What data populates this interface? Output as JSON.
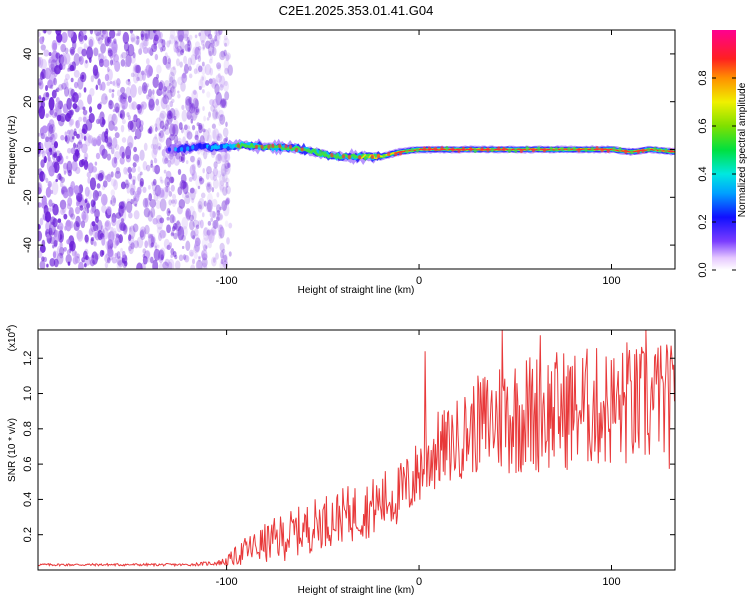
{
  "title": "C2E1.2025.353.01.41.G04",
  "colors": {
    "snr_line": "#e8393a",
    "spec_speckle": "#6a1fd8",
    "axis": "#000000"
  },
  "chart_data": [
    {
      "type": "heatmap",
      "panel": "spectrogram",
      "xlabel": "Height of straight line (km)",
      "ylabel": "Frequency (Hz)",
      "xlim": [
        -198,
        133
      ],
      "ylim": [
        -50,
        50
      ],
      "xticks": [
        -100,
        0,
        100
      ],
      "yticks": [
        -40,
        -20,
        0,
        20,
        40
      ],
      "noise_region_x": [
        -198,
        -100
      ],
      "signal_track": {
        "x": [
          -130,
          -115,
          -100,
          -90,
          -80,
          -70,
          -60,
          -50,
          -40,
          -30,
          -20,
          -10,
          0,
          20,
          40,
          60,
          80,
          90,
          100,
          110,
          120,
          133
        ],
        "freq": [
          0,
          1,
          1,
          2,
          1,
          1,
          0,
          -2,
          -3,
          -3,
          -3,
          -1,
          0,
          0,
          0,
          0,
          0,
          0,
          0,
          -1,
          0,
          -1
        ]
      },
      "colorbar": {
        "label": "Normalized spectral amplitude",
        "range": [
          0,
          1
        ],
        "ticks": [
          "0.0",
          "0.2",
          "0.4",
          "0.6",
          "0.8"
        ],
        "tick_values": [
          0.0,
          0.2,
          0.4,
          0.6,
          0.8
        ]
      }
    },
    {
      "type": "line",
      "panel": "snr",
      "xlabel": "Height of straight line (km)",
      "ylabel": "SNR (10 * v/v)",
      "scale_label": "(x10",
      "scale_exponent": "4",
      "scale_close": ")",
      "xlim": [
        -198,
        133
      ],
      "ylim": [
        0,
        1.36
      ],
      "xticks": [
        -100,
        0,
        100
      ],
      "yticks": [
        "0.2",
        "0.4",
        "0.6",
        "0.8",
        "1.0",
        "1.2"
      ],
      "ytick_values": [
        0.2,
        0.4,
        0.6,
        0.8,
        1.0,
        1.2
      ],
      "series": [
        {
          "name": "SNR",
          "x": [
            -198,
            -160,
            -120,
            -105,
            -100,
            -95,
            -90,
            -85,
            -80,
            -75,
            -70,
            -65,
            -60,
            -55,
            -50,
            -45,
            -40,
            -35,
            -30,
            -25,
            -20,
            -15,
            -10,
            -5,
            0,
            3,
            6,
            10,
            15,
            20,
            25,
            30,
            35,
            40,
            45,
            50,
            55,
            60,
            65,
            70,
            75,
            80,
            85,
            90,
            95,
            100,
            105,
            110,
            115,
            120,
            125,
            130,
            133
          ],
          "mean": [
            0.03,
            0.03,
            0.03,
            0.04,
            0.05,
            0.08,
            0.11,
            0.13,
            0.15,
            0.17,
            0.19,
            0.21,
            0.23,
            0.25,
            0.28,
            0.29,
            0.31,
            0.32,
            0.34,
            0.35,
            0.38,
            0.41,
            0.43,
            0.48,
            0.56,
            0.62,
            0.66,
            0.68,
            0.7,
            0.74,
            0.78,
            0.82,
            0.84,
            0.86,
            0.88,
            0.88,
            0.89,
            0.89,
            0.9,
            0.9,
            0.91,
            0.91,
            0.92,
            0.92,
            0.92,
            0.92,
            0.92,
            0.92,
            0.93,
            0.93,
            0.93,
            0.93,
            0.92
          ],
          "spread": [
            0.005,
            0.005,
            0.005,
            0.01,
            0.02,
            0.04,
            0.06,
            0.07,
            0.08,
            0.09,
            0.1,
            0.1,
            0.1,
            0.11,
            0.11,
            0.11,
            0.11,
            0.12,
            0.12,
            0.12,
            0.13,
            0.13,
            0.13,
            0.14,
            0.14,
            0.18,
            0.18,
            0.16,
            0.16,
            0.17,
            0.18,
            0.2,
            0.22,
            0.24,
            0.25,
            0.25,
            0.25,
            0.25,
            0.25,
            0.25,
            0.25,
            0.25,
            0.25,
            0.25,
            0.25,
            0.25,
            0.25,
            0.25,
            0.25,
            0.26,
            0.26,
            0.26,
            0.25
          ],
          "peaks": [
            [
              3,
              1.24
            ],
            [
              43,
              1.36
            ],
            [
              63,
              1.33
            ],
            [
              108,
              1.29
            ],
            [
              118,
              1.36
            ],
            [
              124,
              1.26
            ]
          ]
        }
      ]
    }
  ]
}
